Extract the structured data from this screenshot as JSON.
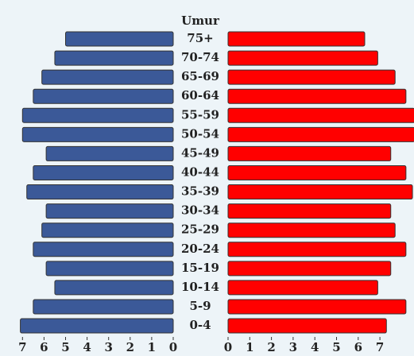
{
  "chart_data": {
    "type": "pyramid",
    "title": "Umur",
    "categories": [
      "75+",
      "70-74",
      "65-69",
      "60-64",
      "55-59",
      "50-54",
      "45-49",
      "40-44",
      "35-39",
      "30-34",
      "25-29",
      "20-24",
      "15-19",
      "10-14",
      "5-9",
      "0-4"
    ],
    "series": [
      {
        "color": "#3b5998",
        "side": "left",
        "values": [
          5.0,
          5.5,
          6.1,
          6.5,
          7.0,
          7.0,
          5.9,
          6.5,
          6.8,
          5.9,
          6.1,
          6.5,
          5.9,
          5.5,
          6.5,
          7.1
        ],
        "xlim": [
          0,
          8
        ],
        "xticks": [
          0,
          1,
          2,
          3,
          4,
          5,
          6,
          7
        ]
      },
      {
        "color": "#ff0000",
        "side": "right",
        "values": [
          6.3,
          6.9,
          7.7,
          8.2,
          8.6,
          8.6,
          7.5,
          8.2,
          8.5,
          7.5,
          7.7,
          8.2,
          7.5,
          6.9,
          8.2,
          7.3
        ],
        "xlim": [
          0,
          8.5
        ],
        "xticks": [
          0,
          1,
          2,
          3,
          4,
          5,
          6,
          7
        ]
      }
    ]
  }
}
